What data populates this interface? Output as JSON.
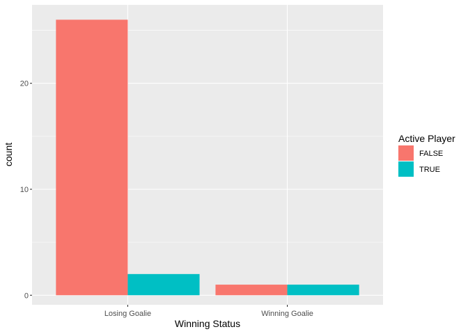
{
  "chart_data": {
    "type": "bar",
    "categories": [
      "Losing Goalie",
      "Winning Goalie"
    ],
    "series": [
      {
        "name": "FALSE",
        "values": [
          26,
          1
        ],
        "color": "#F8766D"
      },
      {
        "name": "TRUE",
        "values": [
          2,
          1
        ],
        "color": "#00BFC4"
      }
    ],
    "xlabel": "Winning Status",
    "ylabel": "count",
    "ylim": [
      -0.9,
      27.4
    ],
    "yticks": [
      0,
      10,
      20
    ],
    "grid": true,
    "legend": {
      "title": "Active Player",
      "placement": "right"
    },
    "panel_color": "#EBEBEB"
  }
}
